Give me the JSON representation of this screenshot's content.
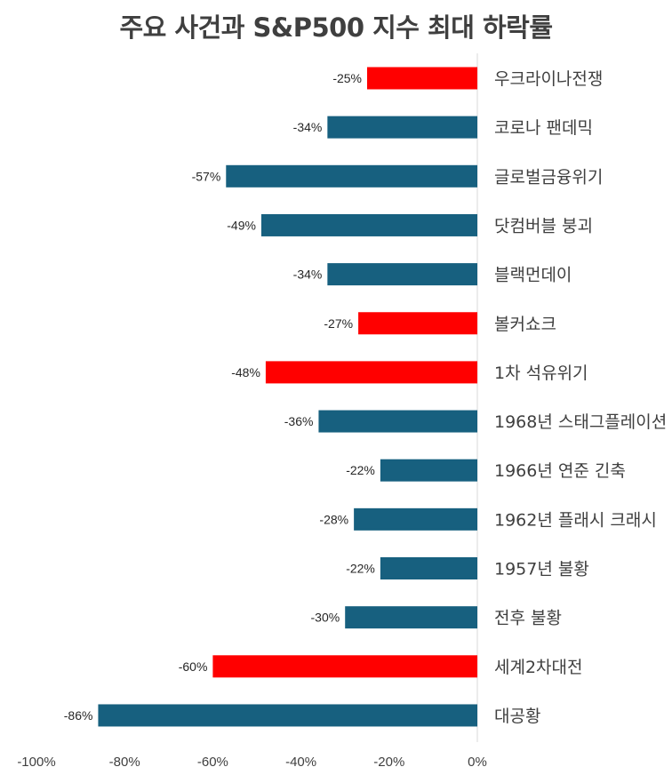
{
  "chart_data": {
    "type": "bar",
    "orientation": "horizontal",
    "title": "주요 사건과 S&P500 지수 최대 하락률",
    "categories": [
      "우크라이나전쟁",
      "코로나 팬데믹",
      "글로벌금융위기",
      "닷컴버블 붕괴",
      "블랙먼데이",
      "볼커쇼크",
      "1차 석유위기",
      "1968년 스태그플레이션",
      "1966년 연준 긴축",
      "1962년 플래시 크래시",
      "1957년 불황",
      "전후 불황",
      "세계2차대전",
      "대공황"
    ],
    "values": [
      -25,
      -34,
      -57,
      -49,
      -34,
      -27,
      -48,
      -36,
      -22,
      -28,
      -22,
      -30,
      -60,
      -86
    ],
    "value_labels": [
      "-25%",
      "-34%",
      "-57%",
      "-49%",
      "-34%",
      "-27%",
      "-48%",
      "-36%",
      "-22%",
      "-28%",
      "-22%",
      "-30%",
      "-60%",
      "-86%"
    ],
    "highlighted": [
      true,
      false,
      false,
      false,
      false,
      true,
      true,
      false,
      false,
      false,
      false,
      false,
      true,
      false
    ],
    "colors": {
      "default": "#17607f",
      "highlight": "#ff0000",
      "axis": "#d9d9d9"
    },
    "xlim": [
      -100,
      0
    ],
    "x_ticks": [
      -100,
      -80,
      -60,
      -40,
      -20,
      0
    ],
    "x_tick_labels": [
      "-100%",
      "-80%",
      "-60%",
      "-40%",
      "-20%",
      "0%"
    ],
    "xlabel": "",
    "ylabel": "",
    "grid": false,
    "legend": "none"
  }
}
